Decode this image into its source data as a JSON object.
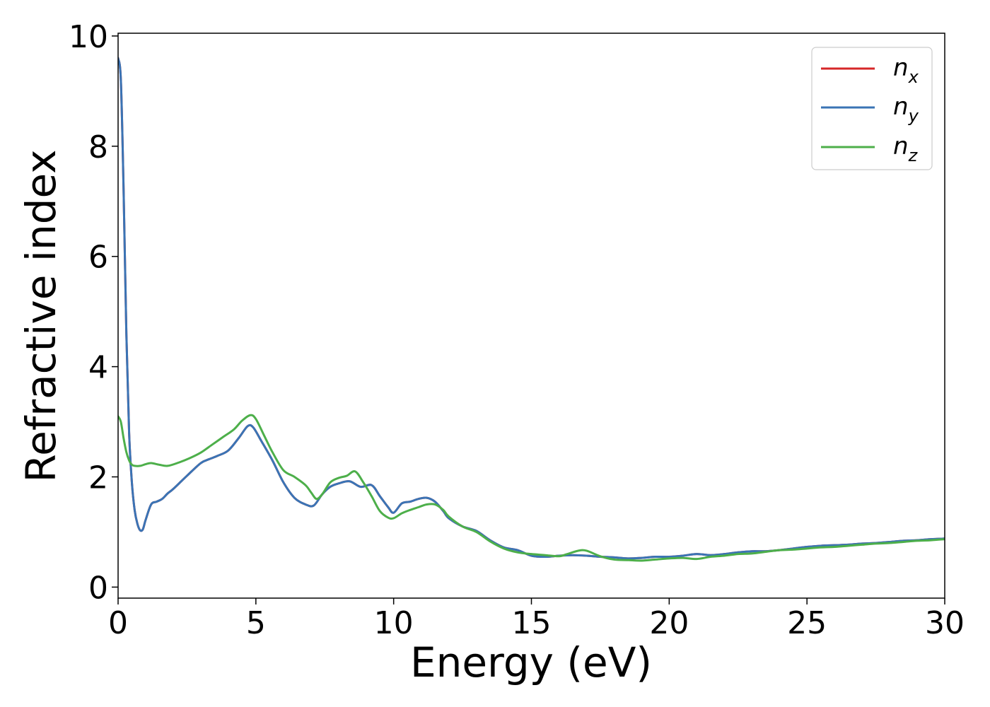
{
  "chart_data": {
    "type": "line",
    "title": "",
    "xlabel": "Energy (eV)",
    "ylabel": "Refractive index",
    "xlim": [
      0,
      30
    ],
    "ylim": [
      -0.2,
      10.05
    ],
    "xticks": [
      0,
      5,
      10,
      15,
      20,
      25,
      30
    ],
    "yticks": [
      0,
      2,
      4,
      6,
      8,
      10
    ],
    "grid": false,
    "legend_position": "top-right",
    "series": [
      {
        "name": "n",
        "subscript": "x",
        "color": "#d62728",
        "x": [
          0,
          0.1,
          0.2,
          0.3,
          0.4,
          0.5,
          0.6,
          0.7,
          0.8,
          0.9,
          1.0,
          1.2,
          1.4,
          1.6,
          1.8,
          2.0,
          2.5,
          3.0,
          3.3,
          3.6,
          4.0,
          4.4,
          4.7,
          4.9,
          5.2,
          5.6,
          6.0,
          6.4,
          6.8,
          7.1,
          7.4,
          7.7,
          8.0,
          8.4,
          8.8,
          9.2,
          9.5,
          9.8,
          10.0,
          10.3,
          10.6,
          10.9,
          11.2,
          11.5,
          11.8,
          12.0,
          12.5,
          13.0,
          13.5,
          14.0,
          14.5,
          15.0,
          15.5,
          16.0,
          16.5,
          17.0,
          17.5,
          18.0,
          18.5,
          19.0,
          19.5,
          20.0,
          20.5,
          21.0,
          21.5,
          22.0,
          22.5,
          23.0,
          23.5,
          24.0,
          24.5,
          25.0,
          25.5,
          26.0,
          26.5,
          27.0,
          27.5,
          28.0,
          28.5,
          29.0,
          29.5,
          30.0
        ],
        "y": [
          9.6,
          9.2,
          7.2,
          4.6,
          2.8,
          1.9,
          1.4,
          1.15,
          1.03,
          1.05,
          1.22,
          1.5,
          1.55,
          1.6,
          1.7,
          1.78,
          2.02,
          2.25,
          2.32,
          2.38,
          2.48,
          2.72,
          2.92,
          2.9,
          2.65,
          2.3,
          1.9,
          1.62,
          1.5,
          1.48,
          1.68,
          1.82,
          1.88,
          1.92,
          1.82,
          1.85,
          1.65,
          1.45,
          1.35,
          1.52,
          1.55,
          1.6,
          1.62,
          1.55,
          1.38,
          1.25,
          1.1,
          1.02,
          0.85,
          0.72,
          0.67,
          0.57,
          0.55,
          0.57,
          0.58,
          0.57,
          0.55,
          0.54,
          0.52,
          0.53,
          0.55,
          0.55,
          0.57,
          0.6,
          0.58,
          0.6,
          0.63,
          0.65,
          0.65,
          0.67,
          0.7,
          0.73,
          0.75,
          0.76,
          0.77,
          0.79,
          0.8,
          0.82,
          0.84,
          0.85,
          0.87,
          0.88
        ]
      },
      {
        "name": "n",
        "subscript": "y",
        "color": "#3a74b5",
        "x": [
          0,
          0.1,
          0.2,
          0.3,
          0.4,
          0.5,
          0.6,
          0.7,
          0.8,
          0.9,
          1.0,
          1.2,
          1.4,
          1.6,
          1.8,
          2.0,
          2.5,
          3.0,
          3.3,
          3.6,
          4.0,
          4.4,
          4.7,
          4.9,
          5.2,
          5.6,
          6.0,
          6.4,
          6.8,
          7.1,
          7.4,
          7.7,
          8.0,
          8.4,
          8.8,
          9.2,
          9.5,
          9.8,
          10.0,
          10.3,
          10.6,
          10.9,
          11.2,
          11.5,
          11.8,
          12.0,
          12.5,
          13.0,
          13.5,
          14.0,
          14.5,
          15.0,
          15.5,
          16.0,
          16.5,
          17.0,
          17.5,
          18.0,
          18.5,
          19.0,
          19.5,
          20.0,
          20.5,
          21.0,
          21.5,
          22.0,
          22.5,
          23.0,
          23.5,
          24.0,
          24.5,
          25.0,
          25.5,
          26.0,
          26.5,
          27.0,
          27.5,
          28.0,
          28.5,
          29.0,
          29.5,
          30.0
        ],
        "y": [
          9.6,
          9.2,
          7.2,
          4.6,
          2.8,
          1.9,
          1.4,
          1.15,
          1.03,
          1.05,
          1.22,
          1.5,
          1.55,
          1.6,
          1.7,
          1.78,
          2.02,
          2.25,
          2.32,
          2.38,
          2.48,
          2.72,
          2.92,
          2.9,
          2.65,
          2.3,
          1.9,
          1.62,
          1.5,
          1.48,
          1.68,
          1.82,
          1.88,
          1.92,
          1.82,
          1.85,
          1.65,
          1.45,
          1.35,
          1.52,
          1.55,
          1.6,
          1.62,
          1.55,
          1.38,
          1.25,
          1.1,
          1.02,
          0.85,
          0.72,
          0.67,
          0.57,
          0.55,
          0.57,
          0.58,
          0.57,
          0.55,
          0.54,
          0.52,
          0.53,
          0.55,
          0.55,
          0.57,
          0.6,
          0.58,
          0.6,
          0.63,
          0.65,
          0.65,
          0.67,
          0.7,
          0.73,
          0.75,
          0.76,
          0.77,
          0.79,
          0.8,
          0.82,
          0.84,
          0.85,
          0.87,
          0.88
        ]
      },
      {
        "name": "n",
        "subscript": "z",
        "color": "#4daf4a",
        "x": [
          0,
          0.1,
          0.2,
          0.3,
          0.4,
          0.5,
          0.6,
          0.8,
          1.0,
          1.2,
          1.5,
          1.8,
          2.2,
          2.6,
          3.0,
          3.4,
          3.8,
          4.2,
          4.5,
          4.8,
          5.0,
          5.3,
          5.6,
          6.0,
          6.4,
          6.8,
          7.0,
          7.2,
          7.4,
          7.7,
          8.0,
          8.3,
          8.6,
          8.9,
          9.2,
          9.5,
          9.8,
          10.0,
          10.3,
          10.6,
          10.9,
          11.2,
          11.5,
          11.8,
          12.0,
          12.5,
          13.0,
          13.5,
          14.0,
          14.5,
          15.0,
          15.5,
          16.0,
          16.3,
          16.7,
          17.0,
          17.5,
          18.0,
          18.5,
          19.0,
          19.5,
          20.0,
          20.5,
          21.0,
          21.5,
          22.0,
          22.5,
          23.0,
          23.5,
          24.0,
          24.5,
          25.0,
          25.5,
          26.0,
          26.5,
          27.0,
          27.5,
          28.0,
          28.5,
          29.0,
          29.5,
          30.0
        ],
        "y": [
          3.1,
          3.0,
          2.7,
          2.45,
          2.3,
          2.22,
          2.2,
          2.2,
          2.23,
          2.25,
          2.22,
          2.2,
          2.26,
          2.34,
          2.44,
          2.58,
          2.72,
          2.86,
          3.02,
          3.12,
          3.05,
          2.75,
          2.45,
          2.12,
          2.0,
          1.85,
          1.72,
          1.6,
          1.68,
          1.9,
          1.98,
          2.02,
          2.1,
          1.9,
          1.65,
          1.38,
          1.26,
          1.25,
          1.34,
          1.4,
          1.45,
          1.5,
          1.5,
          1.4,
          1.28,
          1.1,
          1.0,
          0.83,
          0.7,
          0.63,
          0.6,
          0.58,
          0.56,
          0.6,
          0.66,
          0.66,
          0.56,
          0.5,
          0.49,
          0.48,
          0.5,
          0.52,
          0.53,
          0.51,
          0.55,
          0.57,
          0.6,
          0.61,
          0.64,
          0.67,
          0.68,
          0.7,
          0.72,
          0.73,
          0.75,
          0.77,
          0.79,
          0.8,
          0.82,
          0.84,
          0.85,
          0.87
        ]
      }
    ]
  }
}
